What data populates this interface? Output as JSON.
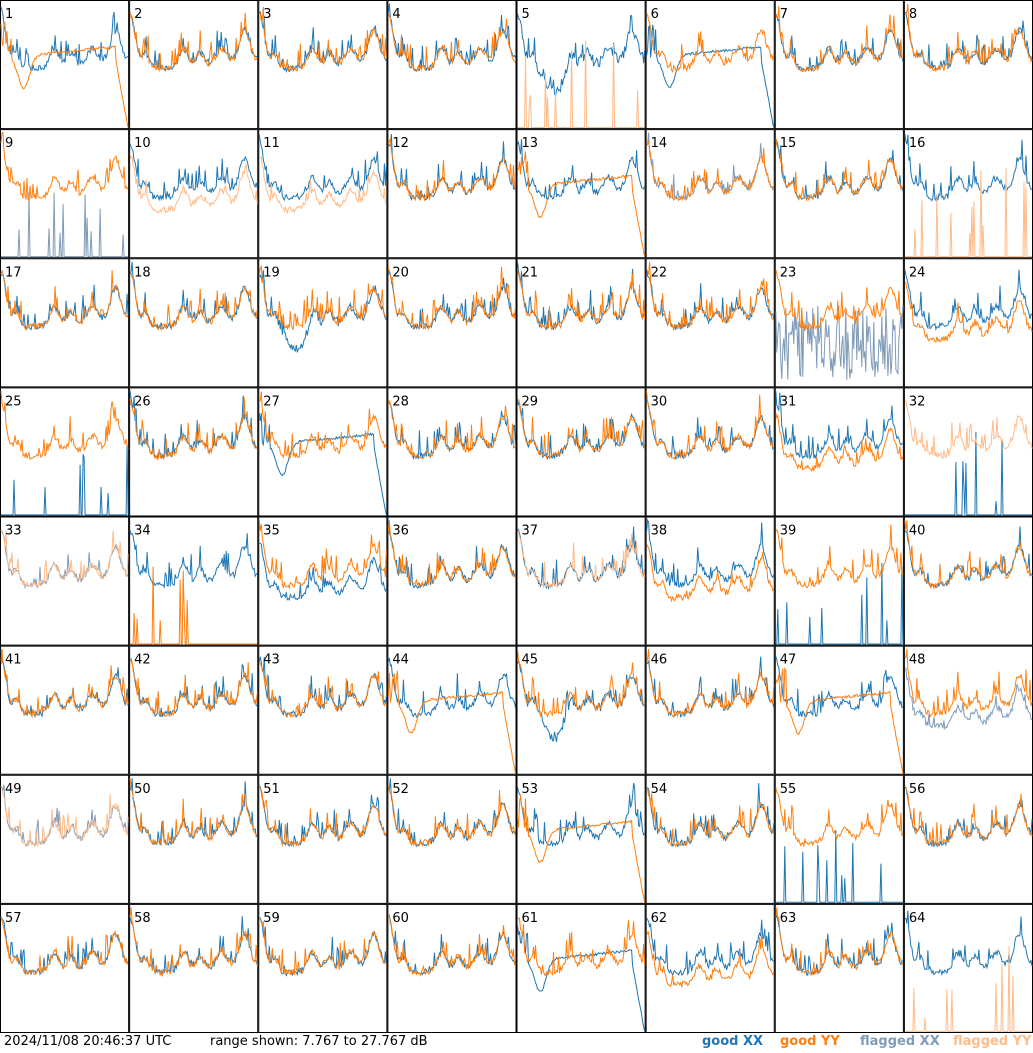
{
  "chart_data": {
    "type": "line",
    "grid": {
      "rows": 8,
      "cols": 8
    },
    "panels": [
      {
        "label": "1",
        "xx": "good",
        "yy": "good",
        "xx_shape": "normal",
        "yy_shape": "smooth_tail"
      },
      {
        "label": "2",
        "xx": "good",
        "yy": "good",
        "xx_shape": "normal",
        "yy_shape": "normal"
      },
      {
        "label": "3",
        "xx": "good",
        "yy": "good",
        "xx_shape": "normal",
        "yy_shape": "normal"
      },
      {
        "label": "4",
        "xx": "good",
        "yy": "good",
        "xx_shape": "normal",
        "yy_shape": "normal"
      },
      {
        "label": "5",
        "xx": "good",
        "yy": "flagged",
        "xx_shape": "normal_dip",
        "yy_shape": "spikes"
      },
      {
        "label": "6",
        "xx": "good",
        "yy": "good",
        "xx_shape": "smooth_tail",
        "yy_shape": "normal"
      },
      {
        "label": "7",
        "xx": "good",
        "yy": "good",
        "xx_shape": "normal",
        "yy_shape": "normal"
      },
      {
        "label": "8",
        "xx": "good",
        "yy": "good",
        "xx_shape": "normal",
        "yy_shape": "normal"
      },
      {
        "label": "9",
        "xx": "flagged",
        "yy": "good",
        "xx_shape": "spikes",
        "yy_shape": "normal"
      },
      {
        "label": "10",
        "xx": "good",
        "yy": "flagged",
        "xx_shape": "normal",
        "yy_shape": "normal_low"
      },
      {
        "label": "11",
        "xx": "good",
        "yy": "flagged",
        "xx_shape": "normal",
        "yy_shape": "normal_low"
      },
      {
        "label": "12",
        "xx": "good",
        "yy": "good",
        "xx_shape": "normal",
        "yy_shape": "normal"
      },
      {
        "label": "13",
        "xx": "good",
        "yy": "good",
        "xx_shape": "normal",
        "yy_shape": "smooth_tail"
      },
      {
        "label": "14",
        "xx": "flagged",
        "yy": "good",
        "xx_shape": "normal",
        "yy_shape": "normal"
      },
      {
        "label": "15",
        "xx": "good",
        "yy": "good",
        "xx_shape": "normal",
        "yy_shape": "normal"
      },
      {
        "label": "16",
        "xx": "good",
        "yy": "flagged",
        "xx_shape": "normal",
        "yy_shape": "spikes"
      },
      {
        "label": "17",
        "xx": "good",
        "yy": "good",
        "xx_shape": "normal",
        "yy_shape": "normal"
      },
      {
        "label": "18",
        "xx": "good",
        "yy": "good",
        "xx_shape": "normal",
        "yy_shape": "normal"
      },
      {
        "label": "19",
        "xx": "good",
        "yy": "good",
        "xx_shape": "normal_dip",
        "yy_shape": "normal"
      },
      {
        "label": "20",
        "xx": "good",
        "yy": "good",
        "xx_shape": "normal",
        "yy_shape": "normal"
      },
      {
        "label": "21",
        "xx": "good",
        "yy": "good",
        "xx_shape": "normal",
        "yy_shape": "normal"
      },
      {
        "label": "22",
        "xx": "good",
        "yy": "good",
        "xx_shape": "normal",
        "yy_shape": "normal"
      },
      {
        "label": "23",
        "xx": "flagged",
        "yy": "good",
        "xx_shape": "noise_band",
        "yy_shape": "normal"
      },
      {
        "label": "24",
        "xx": "good",
        "yy": "good",
        "xx_shape": "normal",
        "yy_shape": "normal_low"
      },
      {
        "label": "25",
        "xx": "good",
        "yy": "good",
        "xx_shape": "spikes",
        "yy_shape": "normal"
      },
      {
        "label": "26",
        "xx": "good",
        "yy": "good",
        "xx_shape": "normal",
        "yy_shape": "normal"
      },
      {
        "label": "27",
        "xx": "good",
        "yy": "good",
        "xx_shape": "smooth_tail",
        "yy_shape": "normal"
      },
      {
        "label": "28",
        "xx": "good",
        "yy": "good",
        "xx_shape": "normal",
        "yy_shape": "normal"
      },
      {
        "label": "29",
        "xx": "good",
        "yy": "good",
        "xx_shape": "normal",
        "yy_shape": "normal"
      },
      {
        "label": "30",
        "xx": "good",
        "yy": "good",
        "xx_shape": "normal",
        "yy_shape": "normal"
      },
      {
        "label": "31",
        "xx": "good",
        "yy": "good",
        "xx_shape": "normal",
        "yy_shape": "normal_low"
      },
      {
        "label": "32",
        "xx": "good",
        "yy": "flagged",
        "xx_shape": "spikes",
        "yy_shape": "normal"
      },
      {
        "label": "33",
        "xx": "flagged",
        "yy": "flagged",
        "xx_shape": "normal",
        "yy_shape": "normal"
      },
      {
        "label": "34",
        "xx": "good",
        "yy": "good",
        "xx_shape": "normal",
        "yy_shape": "spikes"
      },
      {
        "label": "35",
        "xx": "good",
        "yy": "good",
        "xx_shape": "normal_low",
        "yy_shape": "normal"
      },
      {
        "label": "36",
        "xx": "good",
        "yy": "good",
        "xx_shape": "normal",
        "yy_shape": "normal"
      },
      {
        "label": "37",
        "xx": "good",
        "yy": "flagged",
        "xx_shape": "normal",
        "yy_shape": "normal"
      },
      {
        "label": "38",
        "xx": "good",
        "yy": "good",
        "xx_shape": "normal",
        "yy_shape": "normal_low"
      },
      {
        "label": "39",
        "xx": "good",
        "yy": "good",
        "xx_shape": "spikes",
        "yy_shape": "normal"
      },
      {
        "label": "40",
        "xx": "good",
        "yy": "good",
        "xx_shape": "normal",
        "yy_shape": "normal"
      },
      {
        "label": "41",
        "xx": "good",
        "yy": "good",
        "xx_shape": "normal",
        "yy_shape": "normal"
      },
      {
        "label": "42",
        "xx": "good",
        "yy": "good",
        "xx_shape": "normal",
        "yy_shape": "normal"
      },
      {
        "label": "43",
        "xx": "good",
        "yy": "good",
        "xx_shape": "normal",
        "yy_shape": "normal"
      },
      {
        "label": "44",
        "xx": "good",
        "yy": "good",
        "xx_shape": "normal",
        "yy_shape": "smooth_tail"
      },
      {
        "label": "45",
        "xx": "good",
        "yy": "good",
        "xx_shape": "normal_dip",
        "yy_shape": "normal"
      },
      {
        "label": "46",
        "xx": "good",
        "yy": "good",
        "xx_shape": "normal",
        "yy_shape": "normal"
      },
      {
        "label": "47",
        "xx": "good",
        "yy": "good",
        "xx_shape": "normal",
        "yy_shape": "smooth_tail"
      },
      {
        "label": "48",
        "xx": "flagged",
        "yy": "good",
        "xx_shape": "normal_low",
        "yy_shape": "normal"
      },
      {
        "label": "49",
        "xx": "flagged",
        "yy": "flagged",
        "xx_shape": "normal",
        "yy_shape": "normal"
      },
      {
        "label": "50",
        "xx": "good",
        "yy": "good",
        "xx_shape": "normal",
        "yy_shape": "normal"
      },
      {
        "label": "51",
        "xx": "good",
        "yy": "good",
        "xx_shape": "normal",
        "yy_shape": "normal"
      },
      {
        "label": "52",
        "xx": "good",
        "yy": "good",
        "xx_shape": "normal",
        "yy_shape": "normal"
      },
      {
        "label": "53",
        "xx": "good",
        "yy": "good",
        "xx_shape": "normal",
        "yy_shape": "smooth_tail"
      },
      {
        "label": "54",
        "xx": "good",
        "yy": "good",
        "xx_shape": "normal",
        "yy_shape": "normal"
      },
      {
        "label": "55",
        "xx": "good",
        "yy": "good",
        "xx_shape": "spikes",
        "yy_shape": "normal"
      },
      {
        "label": "56",
        "xx": "good",
        "yy": "good",
        "xx_shape": "normal",
        "yy_shape": "normal"
      },
      {
        "label": "57",
        "xx": "good",
        "yy": "good",
        "xx_shape": "normal",
        "yy_shape": "normal"
      },
      {
        "label": "58",
        "xx": "good",
        "yy": "good",
        "xx_shape": "normal",
        "yy_shape": "normal"
      },
      {
        "label": "59",
        "xx": "good",
        "yy": "good",
        "xx_shape": "normal",
        "yy_shape": "normal"
      },
      {
        "label": "60",
        "xx": "good",
        "yy": "good",
        "xx_shape": "normal",
        "yy_shape": "normal"
      },
      {
        "label": "61",
        "xx": "good",
        "yy": "good",
        "xx_shape": "smooth_tail",
        "yy_shape": "normal"
      },
      {
        "label": "62",
        "xx": "good",
        "yy": "good",
        "xx_shape": "normal",
        "yy_shape": "normal_low"
      },
      {
        "label": "63",
        "xx": "good",
        "yy": "good",
        "xx_shape": "normal",
        "yy_shape": "normal"
      },
      {
        "label": "64",
        "xx": "good",
        "yy": "flagged",
        "xx_shape": "normal",
        "yy_shape": "spikes"
      }
    ]
  },
  "colors": {
    "good_xx": "#1f77b4",
    "good_yy": "#ff7f0e",
    "flagged_xx": "#7f9bb8",
    "flagged_yy": "#ffbb88",
    "border": "#000000"
  },
  "footer": {
    "timestamp": "2024/11/08 20:46:37 UTC",
    "range": "range shown: 7.767 to 27.767 dB",
    "legend": {
      "good_xx": "good XX",
      "good_yy": "good YY",
      "flagged_xx": "flagged XX",
      "flagged_yy": "flagged YY"
    }
  }
}
